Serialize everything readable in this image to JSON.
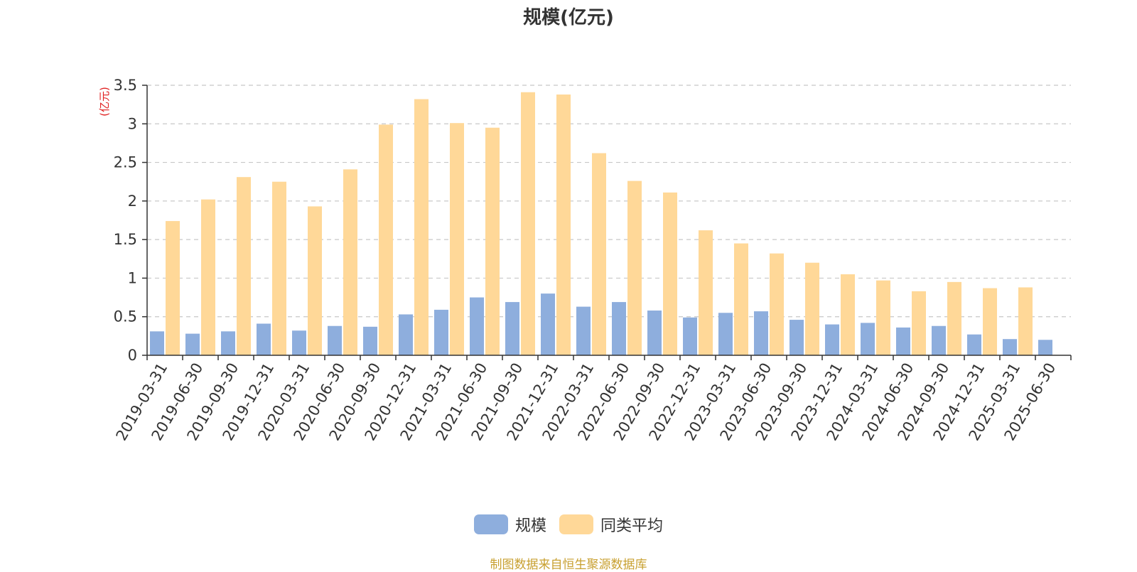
{
  "chart_data": {
    "type": "bar",
    "title": "规模(亿元)",
    "ylabel": "(亿元)",
    "xlabel": "",
    "ylim": [
      0,
      3.5
    ],
    "yticks": [
      "0",
      "0.5",
      "1",
      "1.5",
      "2",
      "2.5",
      "3",
      "3.5"
    ],
    "grid": true,
    "legend_position": "bottom",
    "categories": [
      "2019-03-31",
      "2019-06-30",
      "2019-09-30",
      "2019-12-31",
      "2020-03-31",
      "2020-06-30",
      "2020-09-30",
      "2020-12-31",
      "2021-03-31",
      "2021-06-30",
      "2021-09-30",
      "2021-12-31",
      "2022-03-31",
      "2022-06-30",
      "2022-09-30",
      "2022-12-31",
      "2023-03-31",
      "2023-06-30",
      "2023-09-30",
      "2023-12-31",
      "2024-03-31",
      "2024-06-30",
      "2024-09-30",
      "2024-12-31",
      "2025-03-31",
      "2025-06-30"
    ],
    "series": [
      {
        "name": "规模",
        "color": "#8eaedd",
        "values": [
          0.31,
          0.28,
          0.31,
          0.41,
          0.32,
          0.38,
          0.37,
          0.53,
          0.59,
          0.75,
          0.69,
          0.8,
          0.63,
          0.69,
          0.58,
          0.49,
          0.55,
          0.57,
          0.46,
          0.4,
          0.42,
          0.36,
          0.38,
          0.27,
          0.21,
          0.2
        ]
      },
      {
        "name": "同类平均",
        "color": "#ffd898",
        "values": [
          1.74,
          2.02,
          2.31,
          2.25,
          1.93,
          2.41,
          2.99,
          3.32,
          3.01,
          2.95,
          3.41,
          3.38,
          2.62,
          2.26,
          2.11,
          1.62,
          1.45,
          1.32,
          1.2,
          1.05,
          0.97,
          0.83,
          0.95,
          0.87,
          0.88,
          null
        ]
      }
    ]
  },
  "source_note": "制图数据来自恒生聚源数据库"
}
